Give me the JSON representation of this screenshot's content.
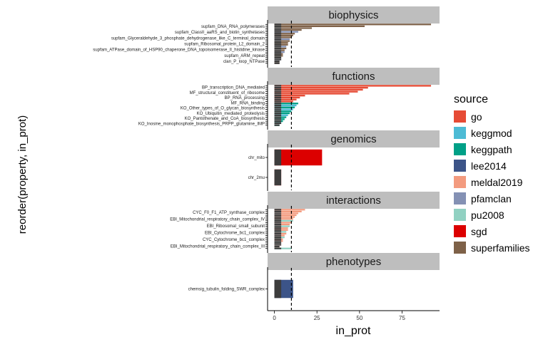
{
  "chart_data": {
    "type": "bar",
    "orientation": "horizontal",
    "faceted": true,
    "xlabel": "in_prot",
    "ylabel": "reorder(property, in_prot)",
    "xlim": [
      -4,
      97
    ],
    "x_ticks": [
      0,
      25,
      50,
      75
    ],
    "reference_line": 10,
    "grid": false,
    "legend": {
      "title": "source",
      "placement": "right",
      "items": [
        {
          "name": "go",
          "color": "#E64B35"
        },
        {
          "name": "keggmod",
          "color": "#4DBBD5"
        },
        {
          "name": "keggpath",
          "color": "#00A087"
        },
        {
          "name": "lee2014",
          "color": "#3C5488"
        },
        {
          "name": "meldal2019",
          "color": "#F39B7F"
        },
        {
          "name": "pfamclan",
          "color": "#8491B4"
        },
        {
          "name": "pu2008",
          "color": "#91D1C2"
        },
        {
          "name": "sgd",
          "color": "#DC0000"
        },
        {
          "name": "superfamilies",
          "color": "#7E6148"
        }
      ]
    },
    "panels": [
      {
        "strip": "biophysics",
        "labels": [
          "supfam_DNA_RNA_polymerases",
          "supfam_ClassII_aaRS_and_biotin_synthetases",
          "supfam_Glyceraldehyde_3_phosphate_dehydrogenase_like_C_terminal_domain",
          "supfam_Ribosomal_protein_L2_domain_2",
          "supfam_ATPase_domain_of_HSP90_chaperone_DNA_topoisomerase_II_histidine_kinase",
          "supfam_ARM_repeat",
          "clan_P_loop_NTPase"
        ],
        "bars": [
          {
            "value": 92,
            "color": "#7E6148"
          },
          {
            "value": 53,
            "color": "#7E6148"
          },
          {
            "value": 22,
            "color": "#7E6148"
          },
          {
            "value": 16,
            "color": "#7E6148"
          },
          {
            "value": 14,
            "color": "#8491B4"
          },
          {
            "value": 12,
            "color": "#7E6148"
          },
          {
            "value": 11,
            "color": "#7E6148"
          },
          {
            "value": 10,
            "color": "#7E6148"
          },
          {
            "value": 9,
            "color": "#8491B4"
          },
          {
            "value": 9,
            "color": "#7E6148"
          },
          {
            "value": 8,
            "color": "#7E6148"
          },
          {
            "value": 8,
            "color": "#7E6148"
          },
          {
            "value": 7,
            "color": "#8491B4"
          },
          {
            "value": 7,
            "color": "#7E6148"
          },
          {
            "value": 6,
            "color": "#7E6148"
          },
          {
            "value": 6,
            "color": "#8491B4"
          },
          {
            "value": 5,
            "color": "#7E6148"
          },
          {
            "value": 5,
            "color": "#7E6148"
          },
          {
            "value": 4,
            "color": "#7E6148"
          },
          {
            "value": 4,
            "color": "#8491B4"
          },
          {
            "value": 3,
            "color": "#7E6148"
          },
          {
            "value": 3,
            "color": "#7E6148"
          }
        ]
      },
      {
        "strip": "functions",
        "labels": [
          "BP_transcription_DNA_mediated",
          "MF_structural_constituent_of_ribosome",
          "BP_RNA_processing",
          "MF_RNA_binding",
          "KO_Other_types_of_O_glycan_biosynthesis",
          "KO_Ubiquitin_mediated_proteolysis",
          "KO_Pantothenate_and_CoA_biosynthesis",
          "KO_Inosine_monophosphate_biosynthesis_PRPP_glutamine_IMP"
        ],
        "bars": [
          {
            "value": 92,
            "color": "#E64B35"
          },
          {
            "value": 55,
            "color": "#E64B35"
          },
          {
            "value": 52,
            "color": "#E64B35"
          },
          {
            "value": 49,
            "color": "#E64B35"
          },
          {
            "value": 44,
            "color": "#E64B35"
          },
          {
            "value": 18,
            "color": "#E64B35"
          },
          {
            "value": 15,
            "color": "#E64B35"
          },
          {
            "value": 13,
            "color": "#E64B35"
          },
          {
            "value": 11,
            "color": "#E64B35"
          },
          {
            "value": 14,
            "color": "#00A087"
          },
          {
            "value": 13,
            "color": "#4DBBD5"
          },
          {
            "value": 12,
            "color": "#00A087"
          },
          {
            "value": 11,
            "color": "#4DBBD5"
          },
          {
            "value": 10,
            "color": "#00A087"
          },
          {
            "value": 9,
            "color": "#00A087"
          },
          {
            "value": 8,
            "color": "#4DBBD5"
          },
          {
            "value": 7,
            "color": "#00A087"
          },
          {
            "value": 6,
            "color": "#00A087"
          },
          {
            "value": 5,
            "color": "#00A087"
          },
          {
            "value": 4,
            "color": "#4DBBD5"
          },
          {
            "value": 3,
            "color": "#00A087"
          }
        ]
      },
      {
        "strip": "genomics",
        "labels": [
          "chr_mito",
          "chr_2mu"
        ],
        "bars": [
          {
            "value": 28,
            "color": "#DC0000"
          },
          {
            "value": 4,
            "color": "#DC0000"
          }
        ]
      },
      {
        "strip": "interactions",
        "labels": [
          "CYC_F0_F1_ATP_synthase_complex",
          "EBI_Mitochondrial_respiratory_chain_complex_IV",
          "EBI_Ribosomal_small_subunit",
          "EBI_Cytochrome_bc1_complex",
          "CYC_Cytochrome_bc1_complex",
          "EBI_Mitochondrial_respiratory_chain_complex_III"
        ],
        "bars": [
          {
            "value": 18,
            "color": "#F39B7F"
          },
          {
            "value": 16,
            "color": "#F39B7F"
          },
          {
            "value": 14,
            "color": "#F39B7F"
          },
          {
            "value": 13,
            "color": "#F39B7F"
          },
          {
            "value": 12,
            "color": "#F39B7F"
          },
          {
            "value": 11,
            "color": "#F39B7F"
          },
          {
            "value": 11,
            "color": "#91D1C2"
          },
          {
            "value": 10,
            "color": "#F39B7F"
          },
          {
            "value": 9,
            "color": "#F39B7F"
          },
          {
            "value": 9,
            "color": "#91D1C2"
          },
          {
            "value": 8,
            "color": "#F39B7F"
          },
          {
            "value": 8,
            "color": "#F39B7F"
          },
          {
            "value": 7,
            "color": "#91D1C2"
          },
          {
            "value": 7,
            "color": "#F39B7F"
          },
          {
            "value": 6,
            "color": "#F39B7F"
          },
          {
            "value": 6,
            "color": "#91D1C2"
          },
          {
            "value": 5,
            "color": "#F39B7F"
          },
          {
            "value": 5,
            "color": "#F39B7F"
          },
          {
            "value": 4,
            "color": "#91D1C2"
          },
          {
            "value": 4,
            "color": "#F39B7F"
          },
          {
            "value": 3,
            "color": "#F39B7F"
          },
          {
            "value": 10,
            "color": "#91D1C2"
          }
        ]
      },
      {
        "strip": "phenotypes",
        "labels": [
          "chemsig_tubulin_folding_SWR_complex"
        ],
        "bars": [
          {
            "value": 11,
            "color": "#3C5488"
          }
        ]
      }
    ]
  }
}
